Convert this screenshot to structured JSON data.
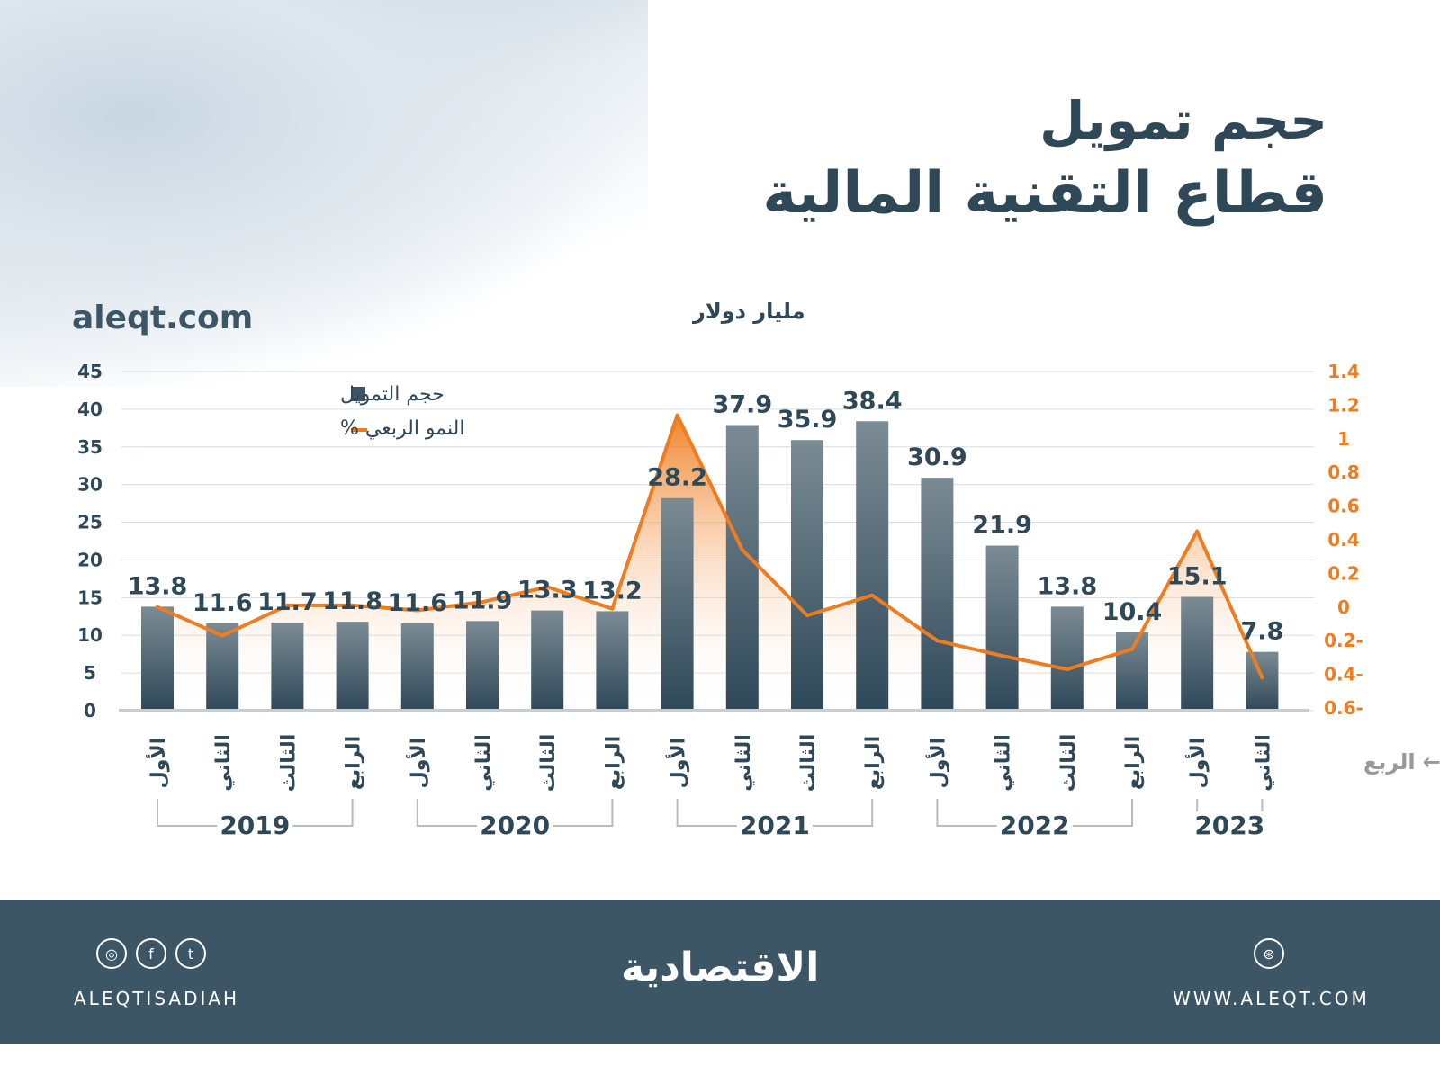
{
  "header": {
    "title_line1": "حجم تمويل",
    "title_line2": "قطاع التقنية المالية",
    "site": "aleqt.com",
    "unit": "مليار دولار"
  },
  "chart_data": {
    "type": "bar+line",
    "title": "حجم تمويل قطاع التقنية المالية",
    "ylabel": "مليار دولار",
    "xlabel": "الربع",
    "ylim": [
      0,
      45
    ],
    "yticks": [
      "0",
      "5",
      "10",
      "15",
      "20",
      "25",
      "30",
      "35",
      "40",
      "45"
    ],
    "y2lim": [
      -0.6,
      1.4
    ],
    "y2ticks": [
      "0.6-",
      "0.4-",
      "0.2-",
      "0",
      "0.2",
      "0.4",
      "0.6",
      "0.8",
      "1",
      "1.2",
      "1.4"
    ],
    "grid": true,
    "legend_placement": "top-left",
    "categories": [
      "الأول",
      "الثاني",
      "الثالث",
      "الرابع",
      "الأول",
      "الثاني",
      "الثالث",
      "الرابع",
      "الأول",
      "الثاني",
      "الثالث",
      "الرابع",
      "الأول",
      "الثاني",
      "الثالث",
      "الرابع",
      "الأول",
      "الثاني"
    ],
    "years": [
      {
        "label": "2019",
        "count": 4
      },
      {
        "label": "2020",
        "count": 4
      },
      {
        "label": "2021",
        "count": 4
      },
      {
        "label": "2022",
        "count": 4
      },
      {
        "label": "2023",
        "count": 2
      }
    ],
    "series": [
      {
        "name": "حجم التمويل",
        "type": "bar",
        "color": "#3d5666",
        "values": [
          13.8,
          11.6,
          11.7,
          11.8,
          11.6,
          11.9,
          13.3,
          13.2,
          28.2,
          37.9,
          35.9,
          38.4,
          30.9,
          21.9,
          13.8,
          10.4,
          15.1,
          7.8
        ]
      },
      {
        "name": "النمو الربعي %",
        "type": "line",
        "axis": "right",
        "color": "#ee7d22",
        "values": [
          0,
          -0.17,
          0.01,
          0.01,
          -0.02,
          0.03,
          0.12,
          -0.01,
          1.14,
          0.34,
          -0.05,
          0.07,
          -0.2,
          -0.29,
          -0.37,
          -0.25,
          0.45,
          -0.42
        ]
      }
    ]
  },
  "footer": {
    "social_handle": "ALEQTISADIAH",
    "logo": "الاقتصادية",
    "website": "WWW.ALEQT.COM",
    "icons": [
      "instagram-icon",
      "facebook-icon",
      "twitter-icon",
      "dribbble-icon"
    ]
  }
}
